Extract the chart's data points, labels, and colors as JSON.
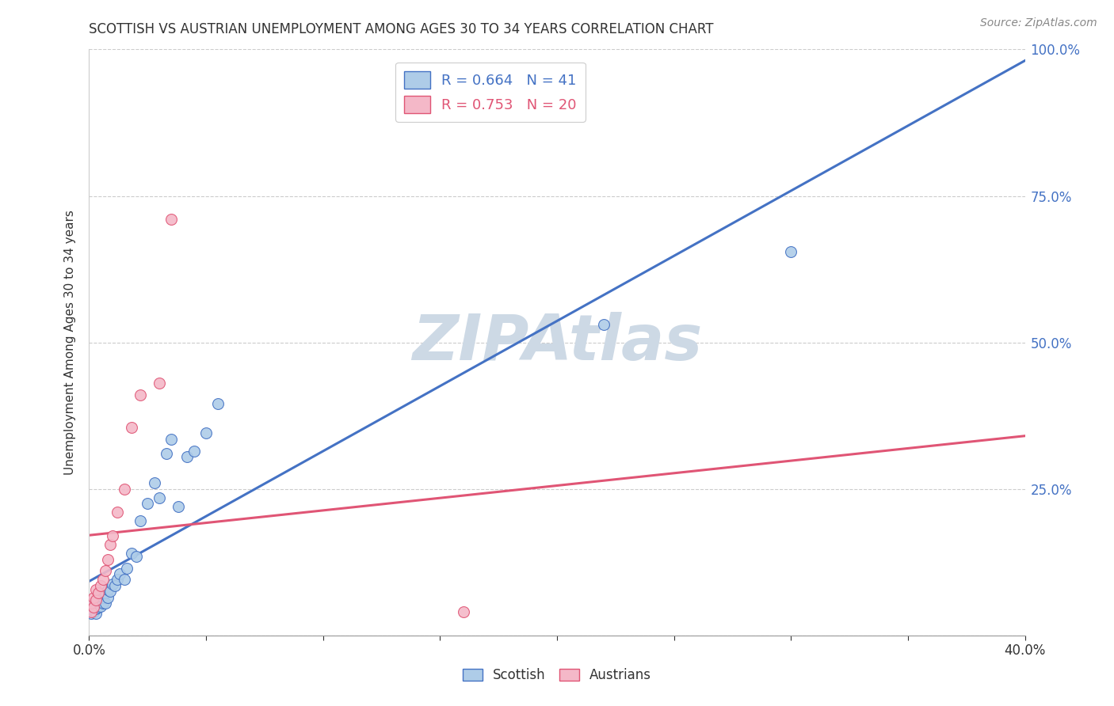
{
  "title": "SCOTTISH VS AUSTRIAN UNEMPLOYMENT AMONG AGES 30 TO 34 YEARS CORRELATION CHART",
  "source": "Source: ZipAtlas.com",
  "ylabel": "Unemployment Among Ages 30 to 34 years",
  "xlim": [
    0.0,
    0.4
  ],
  "ylim": [
    0.0,
    1.0
  ],
  "scottish_R": 0.664,
  "scottish_N": 41,
  "austrian_R": 0.753,
  "austrian_N": 20,
  "scottish_color": "#aecce8",
  "scottish_line_color": "#4472c4",
  "austrian_color": "#f4b8c8",
  "austrian_line_color": "#e05575",
  "background_color": "#ffffff",
  "watermark_color": "#cdd9e5",
  "scottish_x": [
    0.001,
    0.001,
    0.002,
    0.002,
    0.002,
    0.003,
    0.003,
    0.003,
    0.004,
    0.004,
    0.005,
    0.005,
    0.005,
    0.006,
    0.006,
    0.007,
    0.007,
    0.008,
    0.008,
    0.009,
    0.01,
    0.011,
    0.012,
    0.013,
    0.015,
    0.016,
    0.018,
    0.02,
    0.022,
    0.025,
    0.028,
    0.03,
    0.033,
    0.035,
    0.038,
    0.042,
    0.045,
    0.05,
    0.055,
    0.22,
    0.3
  ],
  "scottish_y": [
    0.038,
    0.045,
    0.04,
    0.048,
    0.052,
    0.038,
    0.045,
    0.055,
    0.048,
    0.06,
    0.05,
    0.058,
    0.068,
    0.055,
    0.065,
    0.055,
    0.072,
    0.065,
    0.078,
    0.075,
    0.088,
    0.085,
    0.095,
    0.105,
    0.095,
    0.115,
    0.14,
    0.135,
    0.195,
    0.225,
    0.26,
    0.235,
    0.31,
    0.335,
    0.22,
    0.305,
    0.315,
    0.345,
    0.395,
    0.53,
    0.655
  ],
  "austrian_x": [
    0.001,
    0.001,
    0.002,
    0.002,
    0.003,
    0.003,
    0.004,
    0.005,
    0.006,
    0.007,
    0.008,
    0.009,
    0.01,
    0.012,
    0.015,
    0.018,
    0.022,
    0.03,
    0.035,
    0.16
  ],
  "austrian_y": [
    0.04,
    0.055,
    0.048,
    0.065,
    0.06,
    0.078,
    0.072,
    0.085,
    0.095,
    0.11,
    0.13,
    0.155,
    0.17,
    0.21,
    0.25,
    0.355,
    0.41,
    0.43,
    0.71,
    0.04
  ],
  "scottish_line_x": [
    0.0,
    0.4
  ],
  "austrian_line_x0": 0.0,
  "austrian_line_x1": 0.4
}
